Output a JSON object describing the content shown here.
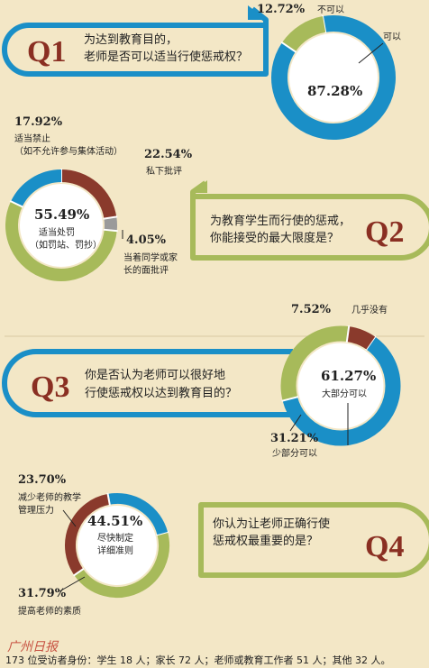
{
  "colors": {
    "background": "#f3e7c6",
    "blue": "#1a8fc7",
    "green": "#a7ba5a",
    "brown": "#8a3a2c",
    "gray": "#9a9a9a",
    "qnum": "#8a2f22"
  },
  "chart_data": [
    {
      "type": "pie",
      "id": "Q1",
      "label": "Q1",
      "question": [
        "为达到教育目的，",
        "老师是否可以适当行使惩戒权？"
      ],
      "slices": [
        {
          "value": 87.28,
          "display": "87.28%",
          "label": "可以",
          "color": "#1a8fc7"
        },
        {
          "value": 12.72,
          "display": "12.72%",
          "label": "不可以",
          "color": "#a7ba5a"
        }
      ]
    },
    {
      "type": "pie",
      "id": "Q2",
      "label": "Q2",
      "question": [
        "为教育学生而行使的惩戒，",
        "你能接受的最大限度是？"
      ],
      "slices": [
        {
          "value": 22.54,
          "display": "22.54%",
          "label": "私下批评",
          "color": "#8a3a2c"
        },
        {
          "value": 4.05,
          "display": "4.05%",
          "label": "当着同学或家长的面批评",
          "color": "#9a9a9a"
        },
        {
          "value": 55.49,
          "display": "55.49%",
          "label": "适当处罚（如罚站、罚抄）",
          "color": "#a7ba5a"
        },
        {
          "value": 17.92,
          "display": "17.92%",
          "label": "适当禁止（如不允许参与集体活动）",
          "color": "#1a8fc7"
        }
      ]
    },
    {
      "type": "pie",
      "id": "Q3",
      "label": "Q3",
      "question": [
        "你是否认为老师可以很好地",
        "行使惩戒权以达到教育目的？"
      ],
      "slices": [
        {
          "value": 61.27,
          "display": "61.27%",
          "label": "大部分可以",
          "color": "#1a8fc7"
        },
        {
          "value": 31.21,
          "display": "31.21%",
          "label": "少部分可以",
          "color": "#a7ba5a"
        },
        {
          "value": 7.52,
          "display": "7.52%",
          "label": "几乎没有",
          "color": "#8a3a2c"
        }
      ]
    },
    {
      "type": "pie",
      "id": "Q4",
      "label": "Q4",
      "question": [
        "你认为让老师正确行使",
        "惩戒权最重要的是？"
      ],
      "slices": [
        {
          "value": 44.51,
          "display": "44.51%",
          "label": "尽快制定详细准则",
          "color": "#a7ba5a"
        },
        {
          "value": 31.79,
          "display": "31.79%",
          "label": "提高老师的素质",
          "color": "#8a3a2c"
        },
        {
          "value": 23.7,
          "display": "23.70%",
          "label": "减少老师的教学管理压力",
          "color": "#1a8fc7"
        }
      ]
    }
  ],
  "footer": "173 位受访者身份：学生 18 人；家长 72 人；老师或教育工作者 51 人；其他 32 人。",
  "logo_text": "广州日报"
}
